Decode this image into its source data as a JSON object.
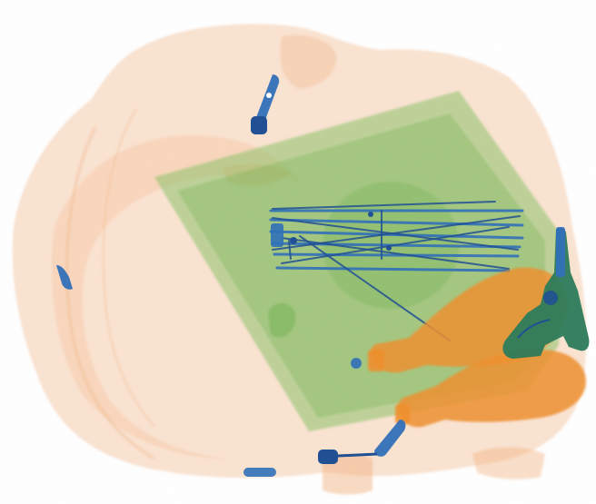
{
  "image": {
    "kind": "x-ray baggage scan",
    "palette": {
      "organic": "#f2b07a",
      "organic_dense": "#ef8f2e",
      "mixed": "#8cc36a",
      "mixed_dense": "#5aa83c",
      "metal": "#2f6fb8",
      "metal_dark": "#1e4f93",
      "gun": "#2a7a5a",
      "background": "#ffffff"
    },
    "objects": [
      {
        "name": "backpack-outline",
        "material": "organic"
      },
      {
        "name": "laptop-sleeve",
        "material": "mixed"
      },
      {
        "name": "wire-frame",
        "material": "metal"
      },
      {
        "name": "water-bottle-1",
        "material": "organic_dense"
      },
      {
        "name": "water-bottle-2",
        "material": "organic_dense"
      },
      {
        "name": "handgun",
        "material": "gun"
      },
      {
        "name": "zipper-pull-top",
        "material": "metal"
      },
      {
        "name": "zipper-pull-left",
        "material": "metal"
      },
      {
        "name": "zipper-pull-bottom",
        "material": "metal"
      }
    ]
  }
}
